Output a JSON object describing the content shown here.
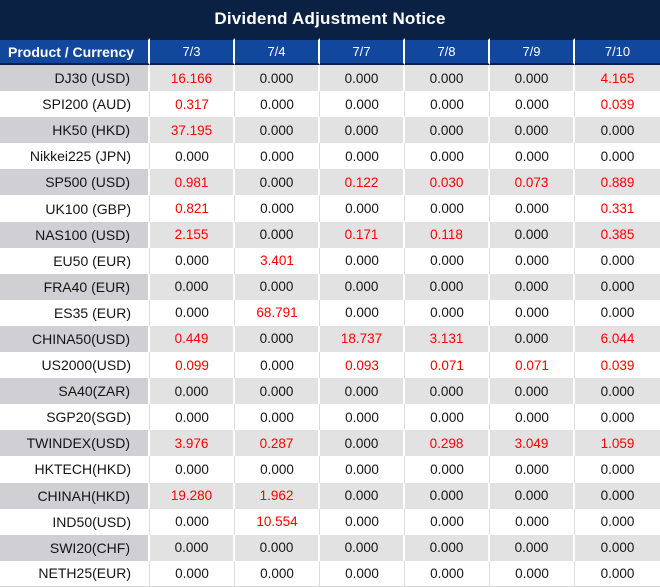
{
  "title": "Dividend Adjustment Notice",
  "colors": {
    "title_bg": "#0b2143",
    "header_bg": "#11489e",
    "red_value": "#ff0000",
    "stripe_value": "#e2e2e2",
    "stripe_product": "#d0d0d4"
  },
  "table": {
    "product_header": "Product / Currency",
    "date_headers": [
      "7/3",
      "7/4",
      "7/7",
      "7/8",
      "7/9",
      "7/10"
    ],
    "rows": [
      {
        "product": "DJ30 (USD)",
        "values": [
          "16.166",
          "0.000",
          "0.000",
          "0.000",
          "0.000",
          "4.165"
        ],
        "red": [
          1,
          0,
          0,
          0,
          0,
          1
        ]
      },
      {
        "product": "SPI200 (AUD)",
        "values": [
          "0.317",
          "0.000",
          "0.000",
          "0.000",
          "0.000",
          "0.039"
        ],
        "red": [
          1,
          0,
          0,
          0,
          0,
          1
        ]
      },
      {
        "product": "HK50 (HKD)",
        "values": [
          "37.195",
          "0.000",
          "0.000",
          "0.000",
          "0.000",
          "0.000"
        ],
        "red": [
          1,
          0,
          0,
          0,
          0,
          0
        ]
      },
      {
        "product": "Nikkei225 (JPN)",
        "values": [
          "0.000",
          "0.000",
          "0.000",
          "0.000",
          "0.000",
          "0.000"
        ],
        "red": [
          0,
          0,
          0,
          0,
          0,
          0
        ]
      },
      {
        "product": "SP500 (USD)",
        "values": [
          "0.981",
          "0.000",
          "0.122",
          "0.030",
          "0.073",
          "0.889"
        ],
        "red": [
          1,
          0,
          1,
          1,
          1,
          1
        ]
      },
      {
        "product": "UK100 (GBP)",
        "values": [
          "0.821",
          "0.000",
          "0.000",
          "0.000",
          "0.000",
          "0.331"
        ],
        "red": [
          1,
          0,
          0,
          0,
          0,
          1
        ]
      },
      {
        "product": "NAS100 (USD)",
        "values": [
          "2.155",
          "0.000",
          "0.171",
          "0.118",
          "0.000",
          "0.385"
        ],
        "red": [
          1,
          0,
          1,
          1,
          0,
          1
        ]
      },
      {
        "product": "EU50 (EUR)",
        "values": [
          "0.000",
          "3.401",
          "0.000",
          "0.000",
          "0.000",
          "0.000"
        ],
        "red": [
          0,
          1,
          0,
          0,
          0,
          0
        ]
      },
      {
        "product": "FRA40 (EUR)",
        "values": [
          "0.000",
          "0.000",
          "0.000",
          "0.000",
          "0.000",
          "0.000"
        ],
        "red": [
          0,
          0,
          0,
          0,
          0,
          0
        ]
      },
      {
        "product": "ES35 (EUR)",
        "values": [
          "0.000",
          "68.791",
          "0.000",
          "0.000",
          "0.000",
          "0.000"
        ],
        "red": [
          0,
          1,
          0,
          0,
          0,
          0
        ]
      },
      {
        "product": "CHINA50(USD)",
        "values": [
          "0.449",
          "0.000",
          "18.737",
          "3.131",
          "0.000",
          "6.044"
        ],
        "red": [
          1,
          0,
          1,
          1,
          0,
          1
        ]
      },
      {
        "product": "US2000(USD)",
        "values": [
          "0.099",
          "0.000",
          "0.093",
          "0.071",
          "0.071",
          "0.039"
        ],
        "red": [
          1,
          0,
          1,
          1,
          1,
          1
        ]
      },
      {
        "product": "SA40(ZAR)",
        "values": [
          "0.000",
          "0.000",
          "0.000",
          "0.000",
          "0.000",
          "0.000"
        ],
        "red": [
          0,
          0,
          0,
          0,
          0,
          0
        ]
      },
      {
        "product": "SGP20(SGD)",
        "values": [
          "0.000",
          "0.000",
          "0.000",
          "0.000",
          "0.000",
          "0.000"
        ],
        "red": [
          0,
          0,
          0,
          0,
          0,
          0
        ]
      },
      {
        "product": "TWINDEX(USD)",
        "values": [
          "3.976",
          "0.287",
          "0.000",
          "0.298",
          "3.049",
          "1.059"
        ],
        "red": [
          1,
          1,
          0,
          1,
          1,
          1
        ]
      },
      {
        "product": "HKTECH(HKD)",
        "values": [
          "0.000",
          "0.000",
          "0.000",
          "0.000",
          "0.000",
          "0.000"
        ],
        "red": [
          0,
          0,
          0,
          0,
          0,
          0
        ]
      },
      {
        "product": "CHINAH(HKD)",
        "values": [
          "19.280",
          "1.962",
          "0.000",
          "0.000",
          "0.000",
          "0.000"
        ],
        "red": [
          1,
          1,
          0,
          0,
          0,
          0
        ]
      },
      {
        "product": "IND50(USD)",
        "values": [
          "0.000",
          "10.554",
          "0.000",
          "0.000",
          "0.000",
          "0.000"
        ],
        "red": [
          0,
          1,
          0,
          0,
          0,
          0
        ]
      },
      {
        "product": "SWI20(CHF)",
        "values": [
          "0.000",
          "0.000",
          "0.000",
          "0.000",
          "0.000",
          "0.000"
        ],
        "red": [
          0,
          0,
          0,
          0,
          0,
          0
        ]
      },
      {
        "product": "NETH25(EUR)",
        "values": [
          "0.000",
          "0.000",
          "0.000",
          "0.000",
          "0.000",
          "0.000"
        ],
        "red": [
          0,
          0,
          0,
          0,
          0,
          0
        ]
      }
    ]
  }
}
